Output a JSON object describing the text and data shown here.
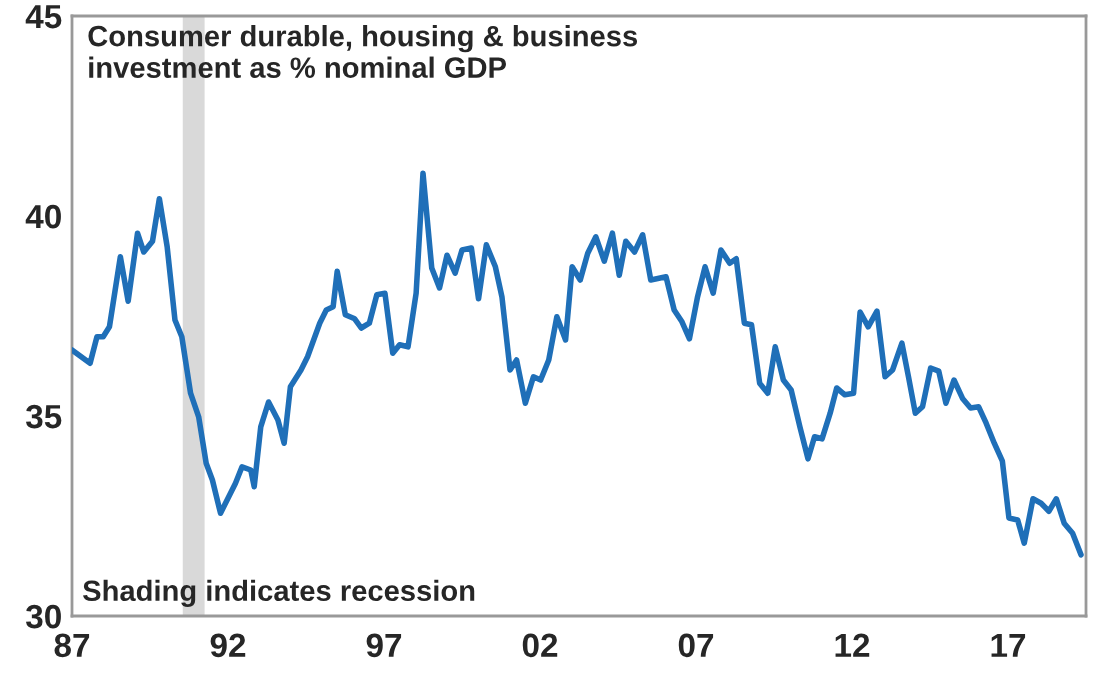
{
  "chart_data": {
    "type": "line",
    "title": "Consumer durable, housing & business\ninvestment as % nominal GDP",
    "annotations": [
      "Shading indicates recession"
    ],
    "x": [
      1987.0,
      1987.58,
      1987.8,
      1988.0,
      1988.2,
      1988.55,
      1988.8,
      1989.1,
      1989.3,
      1989.58,
      1989.8,
      1990.05,
      1990.3,
      1990.52,
      1990.8,
      1991.06,
      1991.3,
      1991.5,
      1991.76,
      1992.24,
      1992.45,
      1992.73,
      1992.84,
      1993.05,
      1993.3,
      1993.6,
      1993.8,
      1994.0,
      1994.34,
      1994.55,
      1994.94,
      1995.15,
      1995.37,
      1995.5,
      1995.76,
      1996.06,
      1996.27,
      1996.53,
      1996.77,
      1997.03,
      1997.28,
      1997.5,
      1997.77,
      1998.03,
      1998.25,
      1998.53,
      1998.78,
      1999.02,
      1999.28,
      1999.5,
      1999.8,
      2000.03,
      2000.28,
      2000.57,
      2000.78,
      2001.04,
      2001.25,
      2001.53,
      2001.79,
      2002.02,
      2002.28,
      2002.54,
      2002.82,
      2003.03,
      2003.29,
      2003.53,
      2003.79,
      2004.06,
      2004.32,
      2004.54,
      2004.75,
      2005.03,
      2005.29,
      2005.55,
      2006.04,
      2006.3,
      2006.54,
      2006.79,
      2007.05,
      2007.29,
      2007.55,
      2007.8,
      2008.08,
      2008.29,
      2008.55,
      2008.78,
      2009.04,
      2009.3,
      2009.54,
      2009.8,
      2010.05,
      2010.33,
      2010.59,
      2010.8,
      2011.04,
      2011.3,
      2011.51,
      2011.77,
      2012.05,
      2012.26,
      2012.52,
      2012.8,
      2013.06,
      2013.3,
      2013.6,
      2013.81,
      2014.03,
      2014.26,
      2014.52,
      2014.78,
      2015.01,
      2015.27,
      2015.55,
      2015.8,
      2016.06,
      2016.3,
      2016.56,
      2016.82,
      2017.03,
      2017.31,
      2017.52,
      2017.8,
      2018.06,
      2018.31,
      2018.55,
      2018.8,
      2019.07,
      2019.34
    ],
    "series": [
      {
        "color": "#1f6fb8",
        "values": [
          36.65,
          36.32,
          36.98,
          36.98,
          37.23,
          38.98,
          37.87,
          39.57,
          39.1,
          39.37,
          40.43,
          39.23,
          37.4,
          36.98,
          35.57,
          34.98,
          33.82,
          33.4,
          32.57,
          33.32,
          33.73,
          33.65,
          33.23,
          34.73,
          35.35,
          34.9,
          34.32,
          35.73,
          36.15,
          36.48,
          37.32,
          37.65,
          37.73,
          38.62,
          37.53,
          37.43,
          37.2,
          37.32,
          38.03,
          38.07,
          36.57,
          36.78,
          36.73,
          38.07,
          41.07,
          38.7,
          38.2,
          39.02,
          38.57,
          39.15,
          39.2,
          37.93,
          39.28,
          38.73,
          37.98,
          36.15,
          36.4,
          35.32,
          35.98,
          35.9,
          36.4,
          37.48,
          36.9,
          38.73,
          38.4,
          39.07,
          39.48,
          38.87,
          39.57,
          38.52,
          39.37,
          39.1,
          39.53,
          38.4,
          38.48,
          37.65,
          37.37,
          36.93,
          37.98,
          38.73,
          38.07,
          39.15,
          38.82,
          38.93,
          37.32,
          37.28,
          35.82,
          35.57,
          36.73,
          35.9,
          35.65,
          34.73,
          33.93,
          34.48,
          34.43,
          35.07,
          35.7,
          35.53,
          35.57,
          37.6,
          37.23,
          37.62,
          35.98,
          36.15,
          36.82,
          35.98,
          35.07,
          35.23,
          36.2,
          36.12,
          35.32,
          35.9,
          35.43,
          35.2,
          35.23,
          34.82,
          34.32,
          33.87,
          32.45,
          32.4,
          31.82,
          32.93,
          32.82,
          32.62,
          32.93,
          32.32,
          32.07,
          31.53
        ]
      }
    ],
    "bands": [
      {
        "axis": "x",
        "from": 1990.55,
        "to": 1991.25,
        "color": "#d9d9d9"
      }
    ],
    "xlim": [
      1987,
      2019.5
    ],
    "xticks": [
      {
        "value": 1987,
        "label": "87"
      },
      {
        "value": 1992,
        "label": "92"
      },
      {
        "value": 1997,
        "label": "97"
      },
      {
        "value": 2002,
        "label": "02"
      },
      {
        "value": 2007,
        "label": "07"
      },
      {
        "value": 2012,
        "label": "12"
      },
      {
        "value": 2017,
        "label": "17"
      }
    ],
    "ylim": [
      30,
      45
    ],
    "yticks": [
      30,
      35,
      40,
      45
    ],
    "grid": false,
    "legend": false
  }
}
